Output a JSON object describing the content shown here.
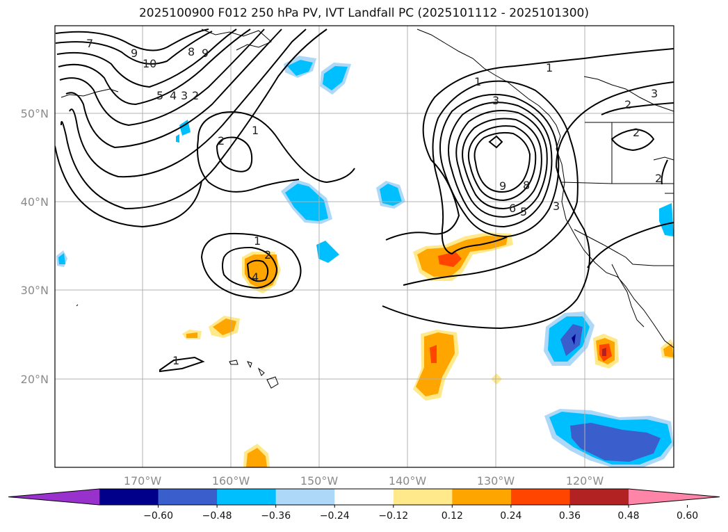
{
  "title": "2025100900 F012 250 hPa PV, IVT Landfall PC (2025101112 - 2025101300)",
  "axes": {
    "lat_labels": [
      "50°N",
      "40°N",
      "30°N",
      "20°N"
    ],
    "lon_labels": [
      "170°W",
      "160°W",
      "150°W",
      "140°W",
      "130°W",
      "120°W"
    ]
  },
  "colorbar": {
    "tick_labels": [
      "−0.60",
      "−0.48",
      "−0.36",
      "−0.24",
      "−0.12",
      "0.12",
      "0.24",
      "0.36",
      "0.48",
      "0.60"
    ],
    "colors": [
      "#9932cc",
      "#00008b",
      "#3a5fcd",
      "#00bfff",
      "#add8f7",
      "#ffffff",
      "#ffe98a",
      "#ffa500",
      "#ff4500",
      "#b22222",
      "#ff85a8"
    ]
  },
  "contour_labels": [
    "7",
    "9",
    "10",
    "8",
    "9",
    "5",
    "4",
    "3",
    "2",
    "2",
    "1",
    "1",
    "4",
    "9",
    "8",
    "6",
    "5",
    "3",
    "1",
    "2",
    "3",
    "2",
    "2",
    "1",
    "2",
    "3",
    "1"
  ]
}
